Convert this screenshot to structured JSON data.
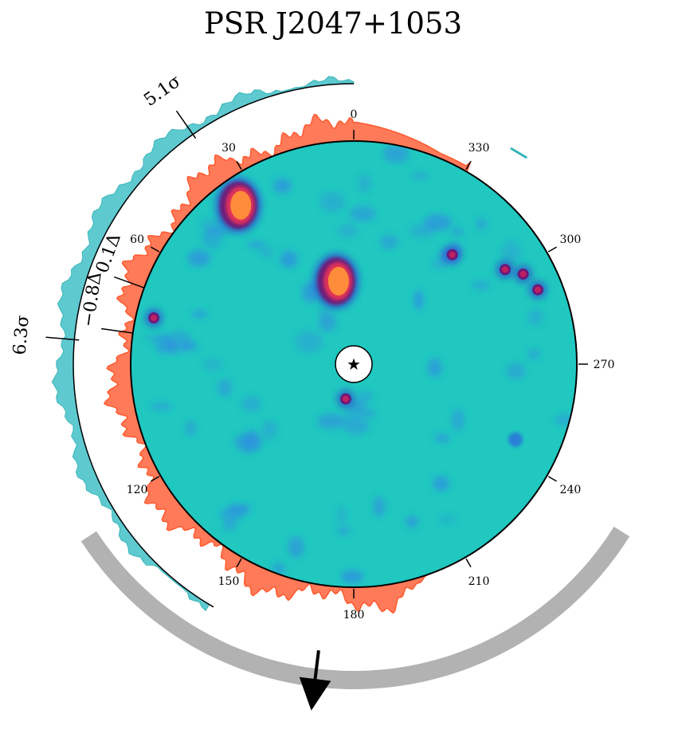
{
  "title": "PSR J2047+1053",
  "chart_data": {
    "type": "polar-map",
    "title": "PSR J2047+1053",
    "angle_ticks": [
      "0",
      "30",
      "60",
      "120",
      "150",
      "180",
      "210",
      "240",
      "270",
      "300",
      "330"
    ],
    "angle_tick_values": [
      0,
      30,
      60,
      120,
      150,
      180,
      210,
      240,
      270,
      300,
      330
    ],
    "significance_labels": [
      {
        "text": "5.1σ",
        "angle": 35
      },
      {
        "text": "6.3σ",
        "angle": 85
      }
    ],
    "delta_labels": [
      {
        "text": "0.1Δ",
        "angle": 70
      },
      {
        "text": "−0.8Δ",
        "angle": 82
      }
    ],
    "hotspots": [
      {
        "angle": 12,
        "r": 0.38,
        "level": "high"
      },
      {
        "angle": 36,
        "r": 0.88,
        "level": "high"
      },
      {
        "angle": 77,
        "r": 0.92,
        "level": "medium"
      },
      {
        "angle": 318,
        "r": 0.66,
        "level": "medium"
      },
      {
        "angle": 302,
        "r": 0.8,
        "level": "medium"
      },
      {
        "angle": 292,
        "r": 0.89,
        "level": "medium"
      },
      {
        "angle": 298,
        "r": 0.86,
        "level": "medium"
      },
      {
        "angle": 167,
        "r": 0.16,
        "level": "medium"
      },
      {
        "angle": 245,
        "r": 0.8,
        "level": "low"
      }
    ],
    "arrow_angle": 173,
    "colors": {
      "map_base": "#20c8c0",
      "orange_band": "#ff7a59",
      "teal_band": "#5ecad0",
      "gray_arc": "#b2b2b2",
      "hot": "#ff8c3a",
      "dark": "#6a1a7a",
      "blue_patch": "#2f8fe0"
    }
  }
}
